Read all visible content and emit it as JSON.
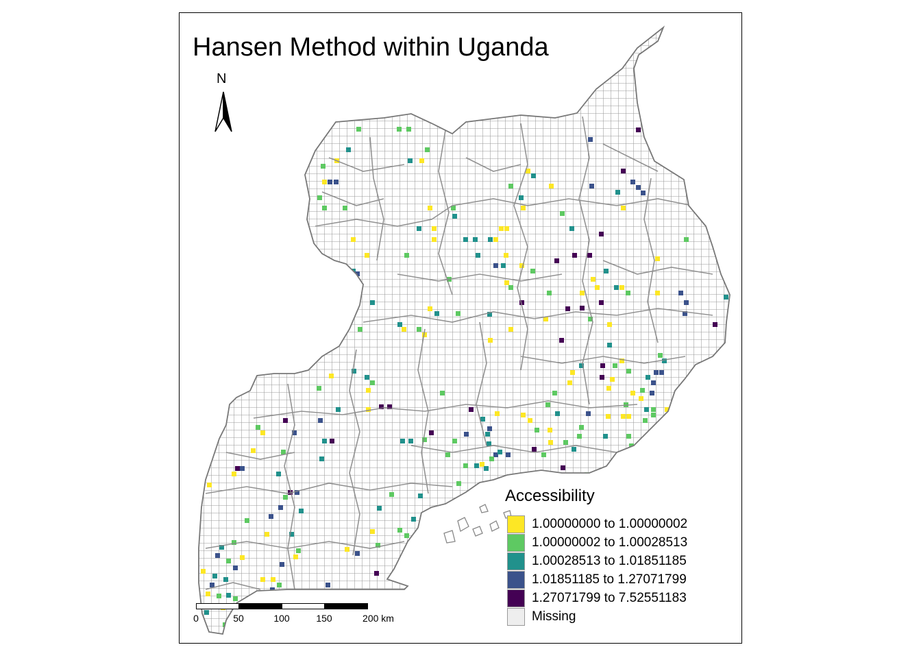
{
  "title": "Hansen Method within Uganda",
  "north_label": "N",
  "legend": {
    "title": "Accessibility",
    "classes": [
      {
        "label": "1.00000000 to 1.00000002",
        "color": "#fde725"
      },
      {
        "label": "1.00000002 to 1.00028513",
        "color": "#5ec962"
      },
      {
        "label": "1.00028513 to 1.01851185",
        "color": "#21918c"
      },
      {
        "label": "1.01851185 to 1.27071799",
        "color": "#3b528b"
      },
      {
        "label": "1.27071799 to 7.52551183",
        "color": "#440154"
      },
      {
        "label": "Missing",
        "color": "#eeeeee"
      }
    ]
  },
  "scalebar": {
    "ticks": [
      "0",
      "50",
      "100",
      "150",
      "200 km"
    ]
  },
  "colors": {
    "grid_line": "#999999",
    "district_line": "#888888",
    "frame": "#000000",
    "land_fill": "#ffffff"
  }
}
